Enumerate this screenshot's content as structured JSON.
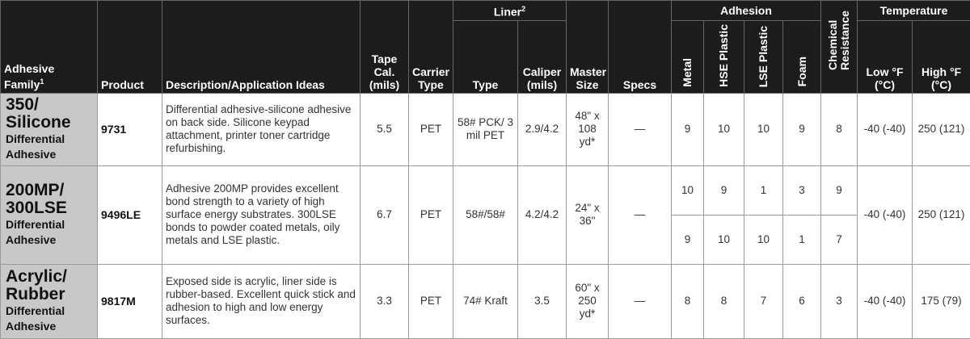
{
  "header": {
    "family": "Adhesive Family",
    "family_sup": "1",
    "product": "Product",
    "description": "Description/Application Ideas",
    "tape_cal": "Tape Cal. (mils)",
    "carrier": "Carrier Type",
    "liner": "Liner",
    "liner_sup": "2",
    "liner_type": "Type",
    "liner_caliper": "Caliper (mils)",
    "master_size": "Master Size",
    "specs": "Specs",
    "adhesion": "Adhesion",
    "metal": "Metal",
    "hse": "HSE Plastic",
    "lse": "LSE Plastic",
    "foam": "Foam",
    "chemical": "Chemical Resistance",
    "temperature": "Temperature",
    "low": "Low °F (°C)",
    "high": "High °F (°C)"
  },
  "rows": [
    {
      "family": "350/ Silicone",
      "family_sub": "Differential Adhesive",
      "product": "9731",
      "description": "Differential adhesive-silicone adhesive on back side. Silicone keypad attachment, printer toner cartridge refurbishing.",
      "tape_cal": "5.5",
      "carrier": "PET",
      "liner_type": "58# PCK/ 3 mil PET",
      "liner_caliper": "2.9/4.2",
      "master_size": "48\" x 108 yd*",
      "specs": "—",
      "metal": "9",
      "hse": "10",
      "lse": "10",
      "foam": "9",
      "chemical": "8",
      "low": "-40 (-40)",
      "high": "250 (121)"
    },
    {
      "family": "200MP/ 300LSE",
      "family_sub": "Differential Adhesive",
      "product": "9496LE",
      "description": "Adhesive 200MP provides excellent bond strength to a variety of high surface energy substrates. 300LSE bonds to powder coated metals, oily metals and LSE plastic.",
      "tape_cal": "6.7",
      "carrier": "PET",
      "liner_type": "58#/58#",
      "liner_caliper": "4.2/4.2",
      "master_size": "24\" x 36\"",
      "specs": "—",
      "adhesion_a": {
        "metal": "10",
        "hse": "9",
        "lse": "1",
        "foam": "3",
        "chemical": "9"
      },
      "adhesion_b": {
        "metal": "9",
        "hse": "10",
        "lse": "10",
        "foam": "1",
        "chemical": "7"
      },
      "low": "-40 (-40)",
      "high": "250 (121)"
    },
    {
      "family": "Acrylic/ Rubber",
      "family_sub": "Differential Adhesive",
      "product": "9817M",
      "description": "Exposed side is acrylic, liner side is rubber-based. Excellent quick stick and adhesion to high and low energy surfaces.",
      "tape_cal": "3.3",
      "carrier": "PET",
      "liner_type": "74# Kraft",
      "liner_caliper": "3.5",
      "master_size": "60\" x 250 yd*",
      "specs": "—",
      "metal": "8",
      "hse": "8",
      "lse": "7",
      "foam": "6",
      "chemical": "3",
      "low": "-40 (-40)",
      "high": "175 (79)"
    }
  ],
  "colors": {
    "header_bg": "#1c1c1c",
    "family_bg": "#c8c8c8"
  }
}
